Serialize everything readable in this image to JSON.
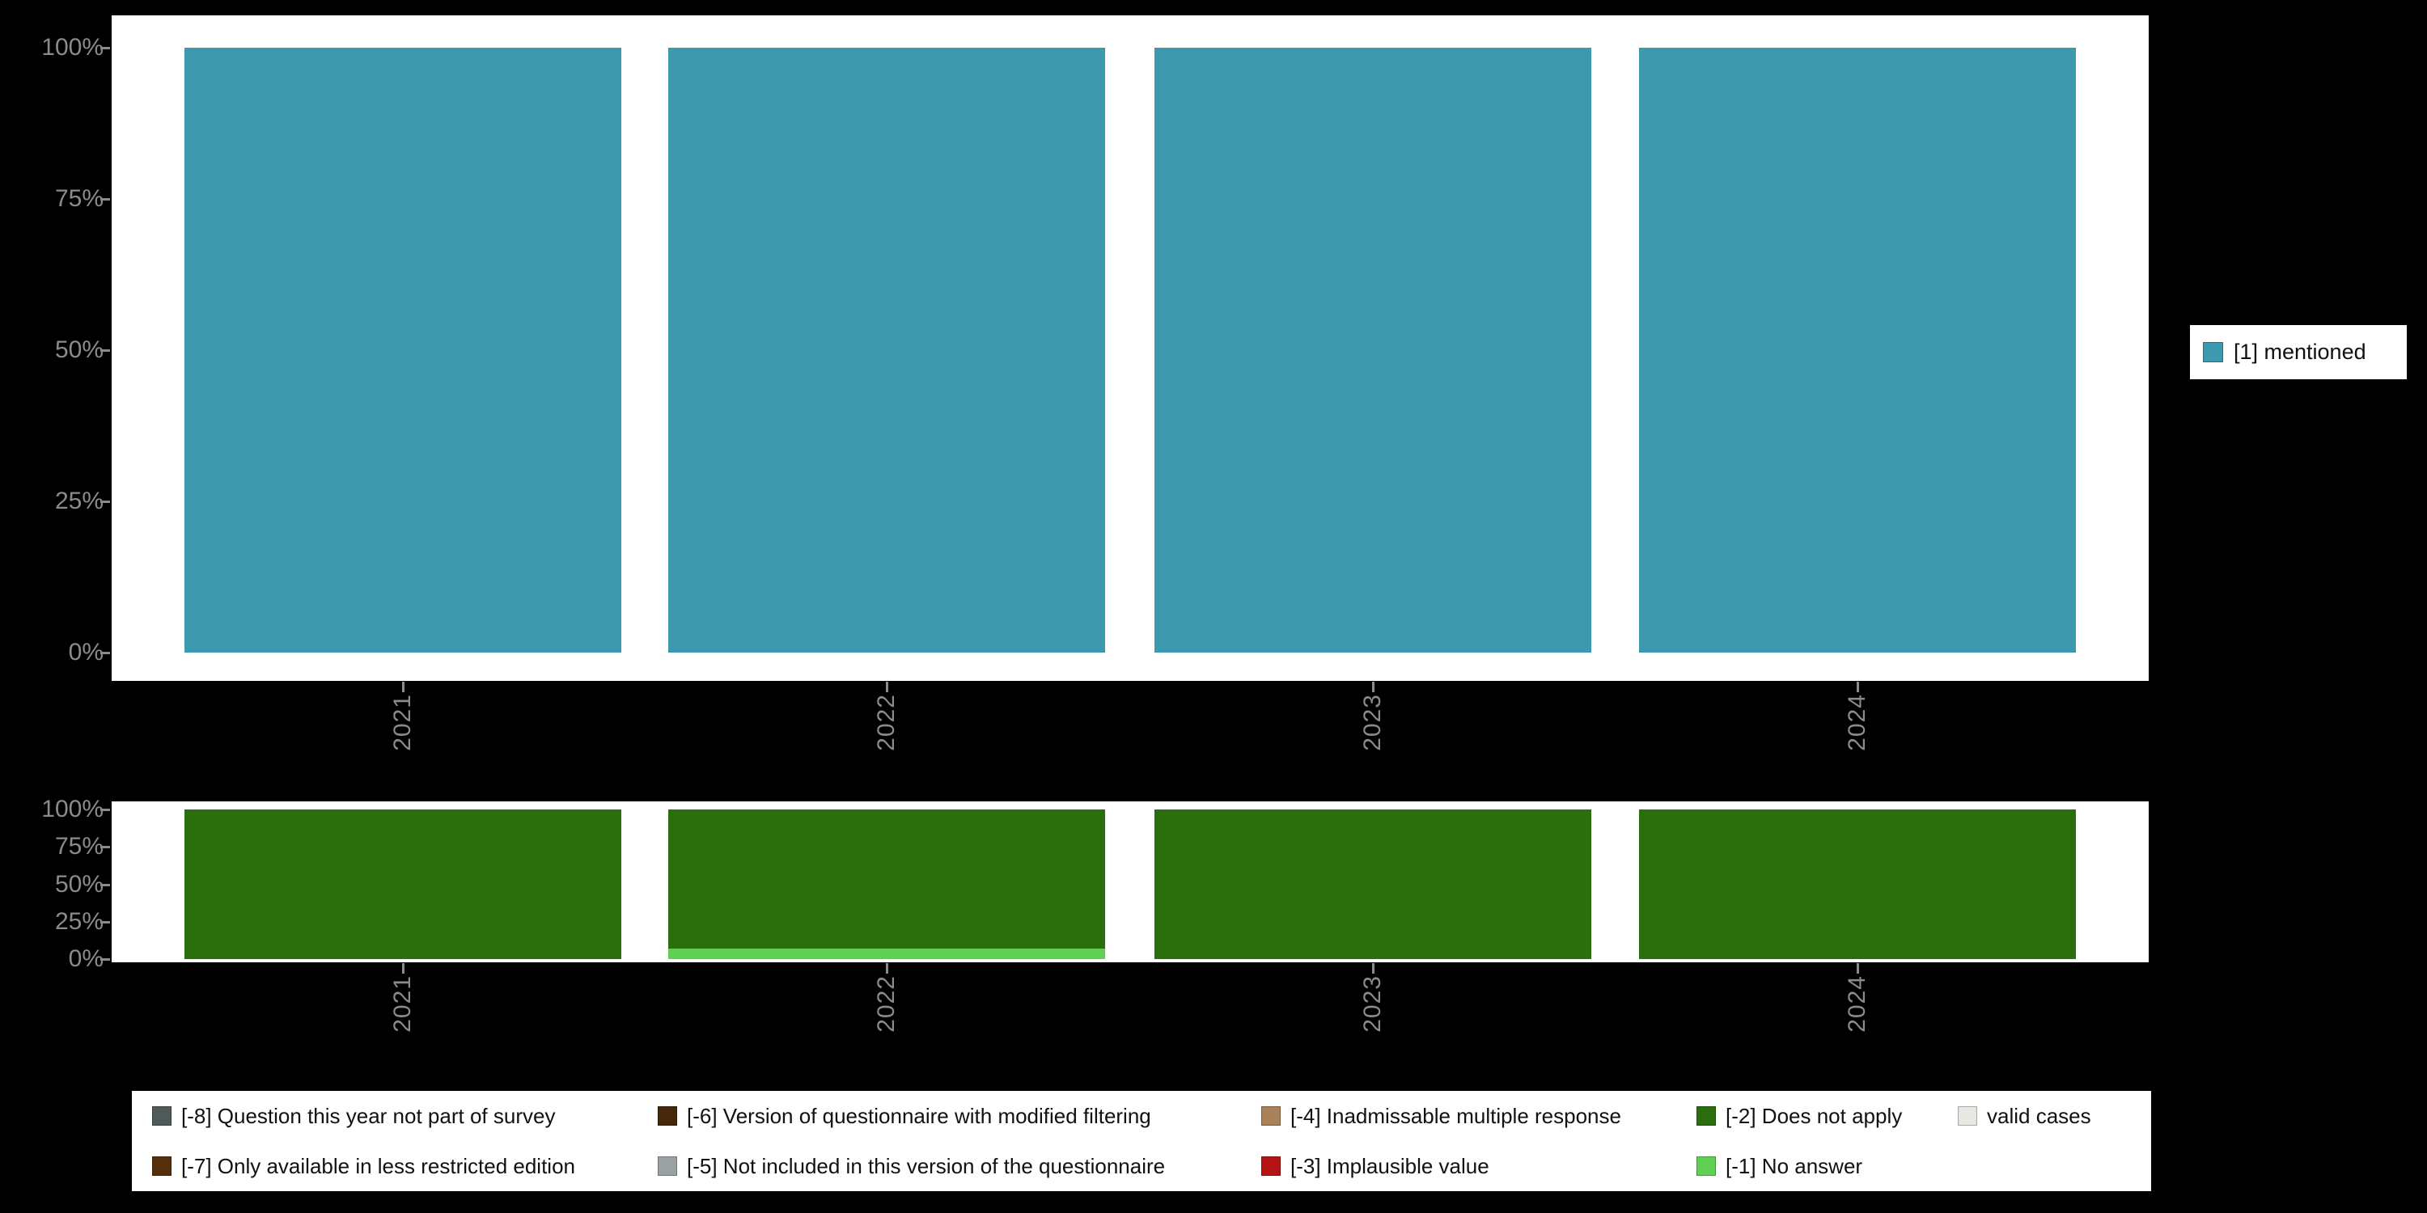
{
  "figure": {
    "background": "#000000",
    "panel_background": "#ffffff",
    "axis_text_color": "#8b8b8b"
  },
  "chart_data": [
    {
      "type": "bar",
      "panel": "top",
      "title": "",
      "xlabel": "",
      "ylabel": "",
      "categories": [
        "2021",
        "2022",
        "2023",
        "2024"
      ],
      "series": [
        {
          "name": "[1] mentioned",
          "color": "#3e98ae",
          "values": [
            100,
            100,
            100,
            100
          ]
        }
      ],
      "stacked": false,
      "ylim": [
        0,
        100
      ],
      "yticks": [
        0,
        25,
        50,
        75,
        100
      ],
      "ytick_labels": [
        "0%",
        "25%",
        "50%",
        "75%",
        "100%"
      ],
      "grid": false,
      "legend_position": "right"
    },
    {
      "type": "bar",
      "panel": "bottom",
      "title": "",
      "xlabel": "",
      "ylabel": "",
      "categories": [
        "2021",
        "2022",
        "2023",
        "2024"
      ],
      "stacked": true,
      "stack_order": "bottom-to-top",
      "series": [
        {
          "name": "[-1] No answer",
          "color": "#5ed152",
          "values": [
            0,
            7,
            0,
            0
          ]
        },
        {
          "name": "[-2] Does not apply",
          "color": "#2b6e0e",
          "values": [
            100,
            93,
            100,
            100
          ]
        }
      ],
      "ylim": [
        0,
        100
      ],
      "yticks": [
        0,
        25,
        50,
        75,
        100
      ],
      "ytick_labels": [
        "0%",
        "25%",
        "50%",
        "75%",
        "100%"
      ],
      "grid": false,
      "legend_position": "bottom"
    }
  ],
  "legend_right": {
    "items": [
      {
        "label": "[1] mentioned",
        "color": "#3e98ae"
      }
    ]
  },
  "legend_bottom": {
    "rows": [
      [
        {
          "label": "[-8] Question this year not part of survey",
          "color": "#4f5b59"
        },
        {
          "label": "[-6] Version of questionnaire with modified filtering",
          "color": "#45270b"
        },
        {
          "label": "[-4] Inadmissable multiple response",
          "color": "#a8815b"
        },
        {
          "label": "[-2] Does not apply",
          "color": "#2b6e0e"
        },
        {
          "label": "valid cases",
          "color": "#e8e8e3"
        }
      ],
      [
        {
          "label": "[-7] Only available in less restricted edition",
          "color": "#552f0c"
        },
        {
          "label": "[-5] Not included in this version of the questionnaire",
          "color": "#9aa1a3"
        },
        {
          "label": "[-3] Implausible value",
          "color": "#b51414"
        },
        {
          "label": "[-1] No answer",
          "color": "#5ed152"
        }
      ]
    ]
  }
}
